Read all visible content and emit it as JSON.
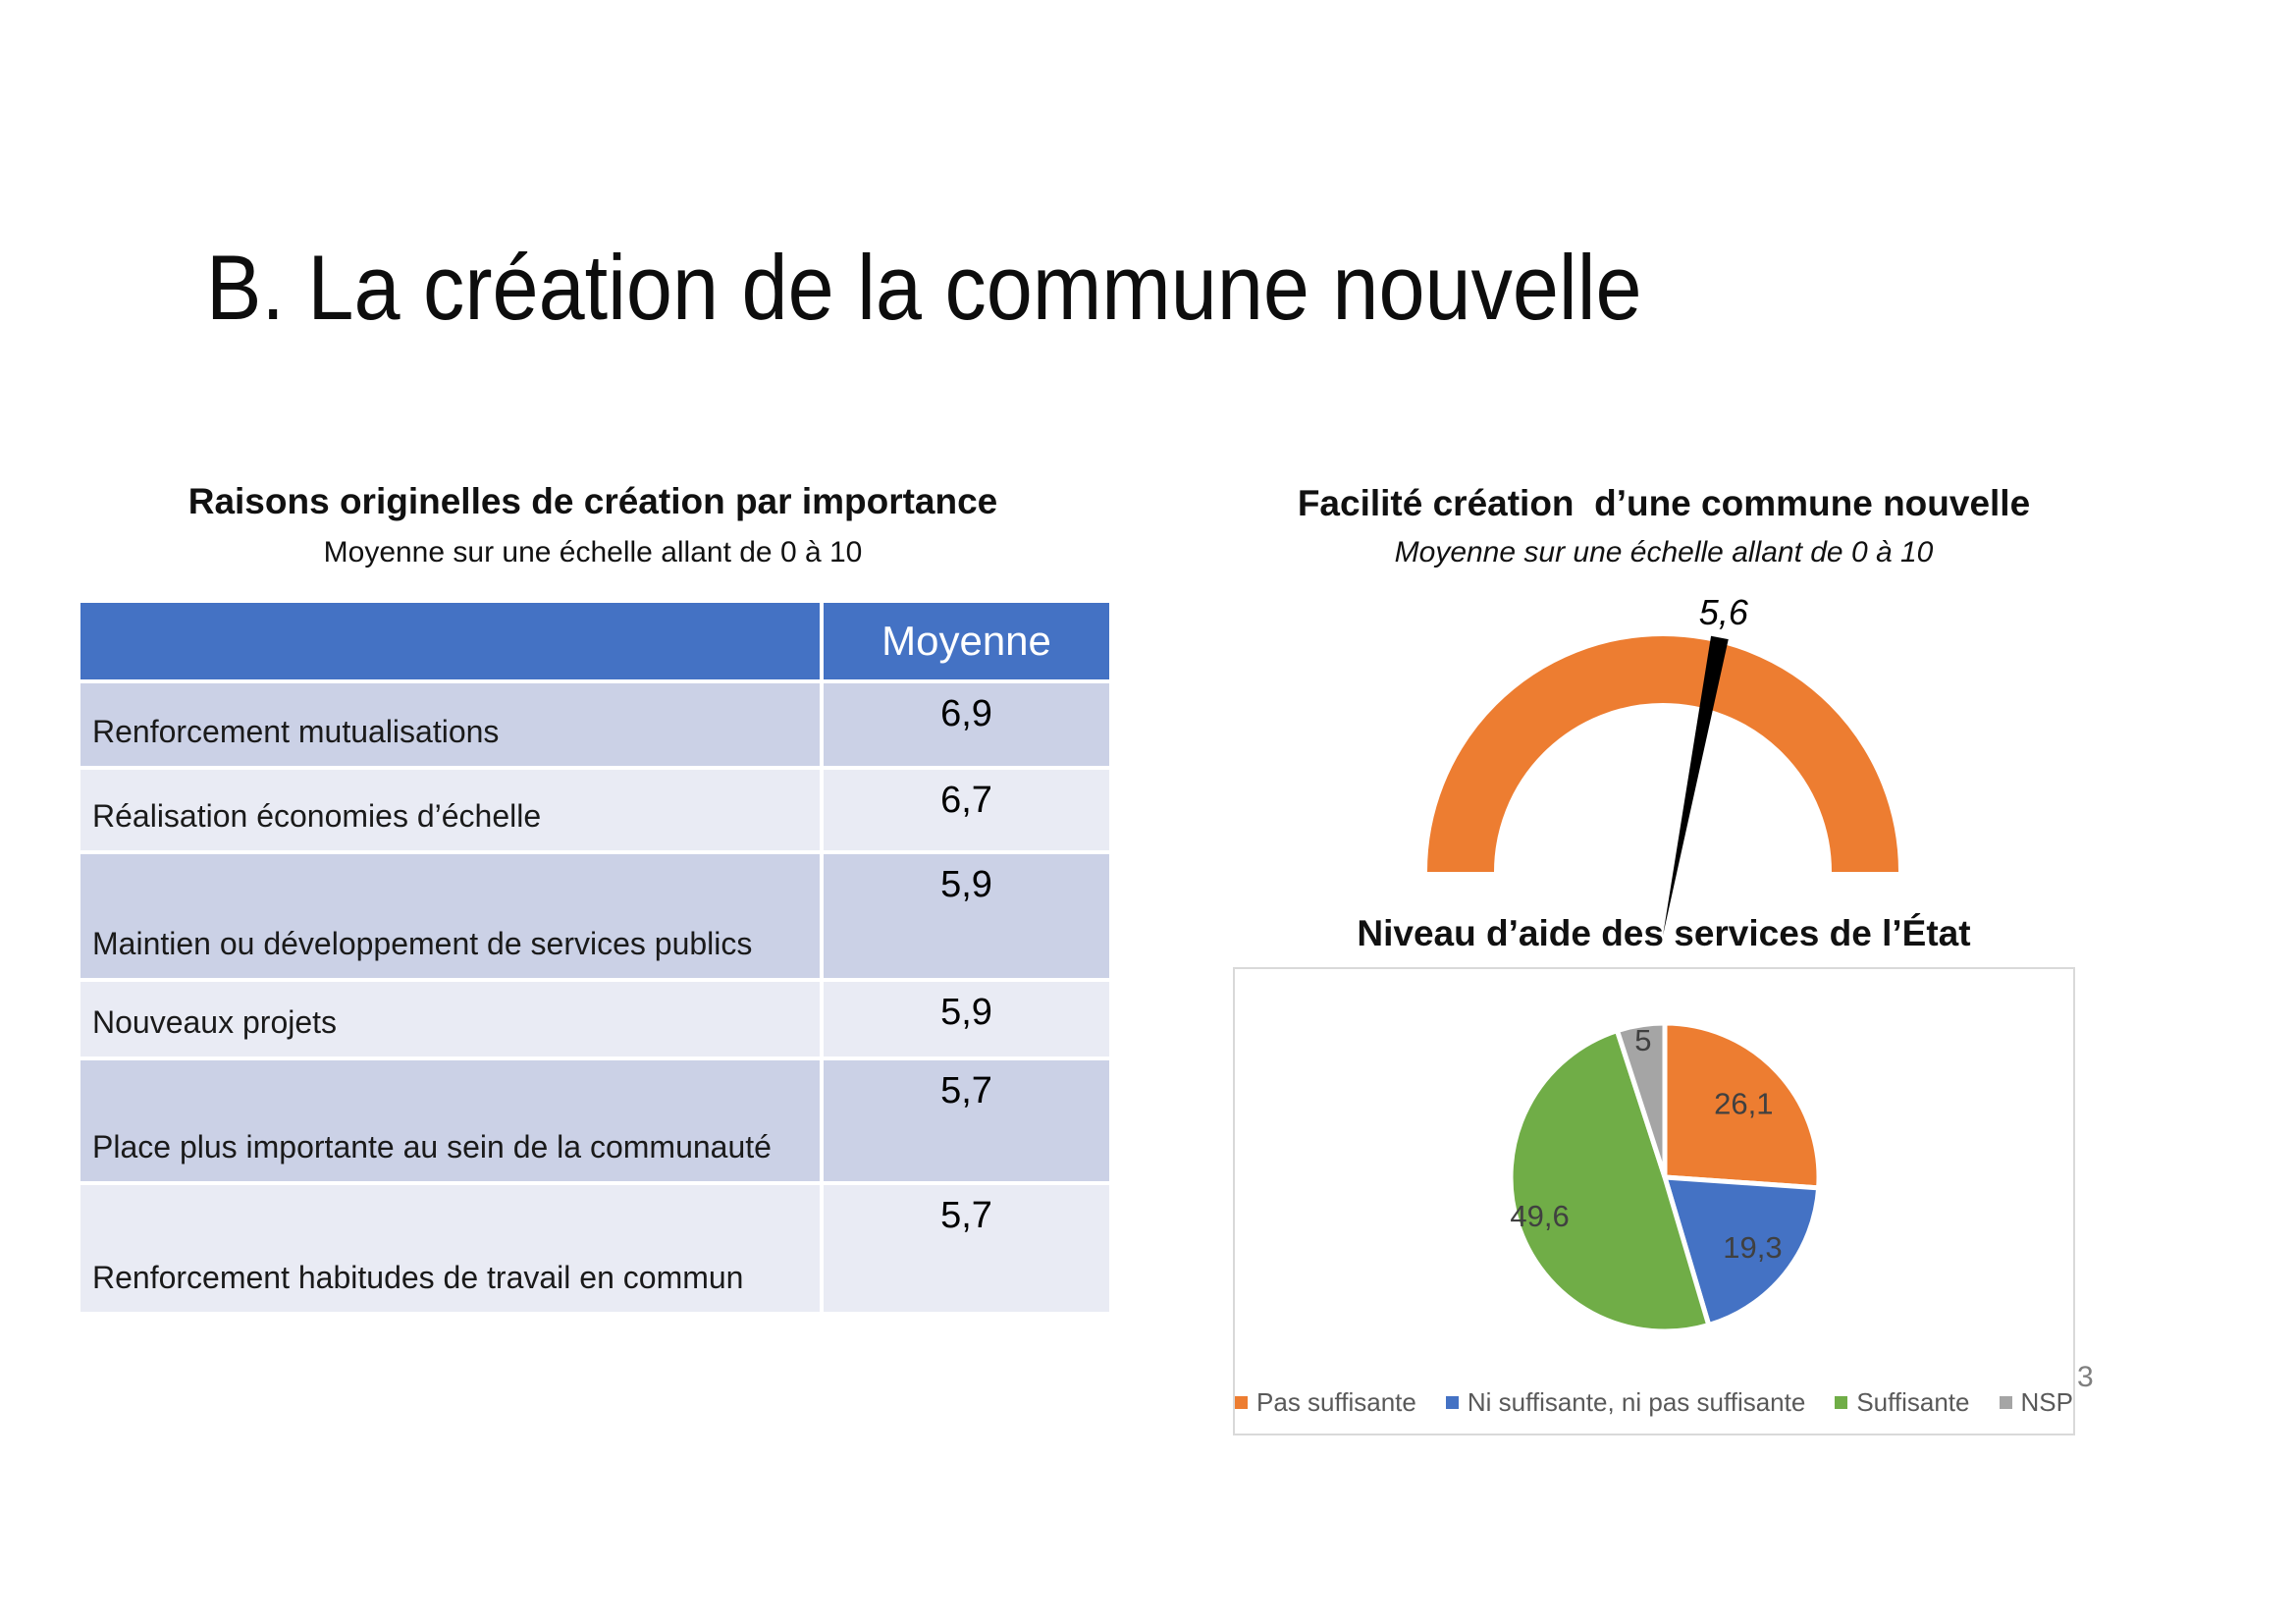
{
  "slide": {
    "title": "B. La création de la commune nouvelle",
    "page_number": "3"
  },
  "chart_data": [
    {
      "type": "gauge",
      "title": "Facilité création  d’une commune nouvelle",
      "subtitle": "Moyenne sur une échelle allant de 0 à 10",
      "value": 5.6,
      "value_label": "5,6",
      "min": 0,
      "max": 10,
      "arc_color": "#ED7D31",
      "needle_color": "#000000"
    },
    {
      "type": "pie",
      "title": "Niveau d’aide des services de l’État",
      "labels": [
        "Pas suffisante",
        "Ni suffisante, ni pas suffisante",
        "Suffisante",
        "NSP"
      ],
      "values": [
        26.1,
        19.3,
        49.6,
        5
      ],
      "value_labels": [
        "26,1",
        "19,3",
        "49,6",
        "5"
      ],
      "colors": [
        "#ED7D31",
        "#4472C4",
        "#70AD47",
        "#A5A5A5"
      ],
      "start_angle_deg": 0,
      "direction": "clockwise",
      "legend_position": "bottom-inside",
      "label_color": "#404040"
    },
    {
      "type": "table",
      "title": "Raisons originelles de création par importance",
      "subtitle": "Moyenne sur une échelle allant de 0 à 10",
      "columns": [
        "",
        "Moyenne"
      ],
      "rows": [
        [
          "Renforcement mutualisations",
          "6,9"
        ],
        [
          "Réalisation économies d’échelle",
          "6,7"
        ],
        [
          "Maintien ou développement de services publics",
          "5,9"
        ],
        [
          "Nouveaux projets",
          "5,9"
        ],
        [
          "Place plus importante au sein de la communauté",
          "5,7"
        ],
        [
          "Renforcement habitudes de travail en commun",
          "5,7"
        ]
      ],
      "header_bg": "#4472C4",
      "band_colors": [
        "#CBD1E6",
        "#E9EBF4"
      ]
    }
  ]
}
